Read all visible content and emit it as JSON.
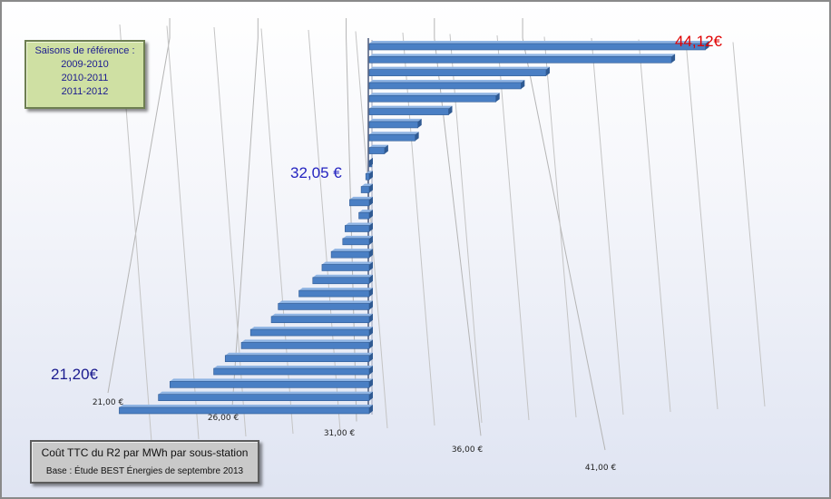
{
  "chart_data": {
    "type": "bar",
    "orientation": "horizontal",
    "style": "3d",
    "title": "",
    "xlabel": "",
    "ylabel": "",
    "xlim": [
      21,
      44.12
    ],
    "x_ticks": [
      "21,00 €",
      "26,00 €",
      "31,00 €",
      "36,00 €",
      "41,00 €"
    ],
    "tick_values": [
      21,
      26,
      31,
      36,
      41
    ],
    "reference_value": 32.05,
    "series": [
      {
        "values": [
          21.2,
          22.9,
          23.4,
          25.3,
          25.8,
          26.5,
          26.9,
          27.8,
          28.1,
          29.0,
          29.6,
          30.0,
          30.4,
          30.9,
          31.0,
          31.6,
          31.2,
          31.7,
          31.9,
          32.05,
          32.6,
          33.7,
          33.8,
          34.9,
          36.6,
          37.5,
          38.4,
          42.9,
          44.12
        ],
        "color": "#4a7fc4"
      }
    ],
    "grid": true,
    "legend_position": "top-left"
  },
  "legend": {
    "title": "Saisons de référence :",
    "items": [
      "2009-2010",
      "2010-2011",
      "2011-2012"
    ]
  },
  "annotations": {
    "max_label": "44,12€",
    "ref_label": "32,05 €",
    "min_label": "21,20€",
    "max_color": "#e00000",
    "ref_color": "#2424c0",
    "min_color": "#1b1b8f"
  },
  "footer": {
    "title": "Coût TTC du R2 par MWh par sous-station",
    "subtitle": "Base : Étude BEST  Énergies de septembre 2013"
  }
}
